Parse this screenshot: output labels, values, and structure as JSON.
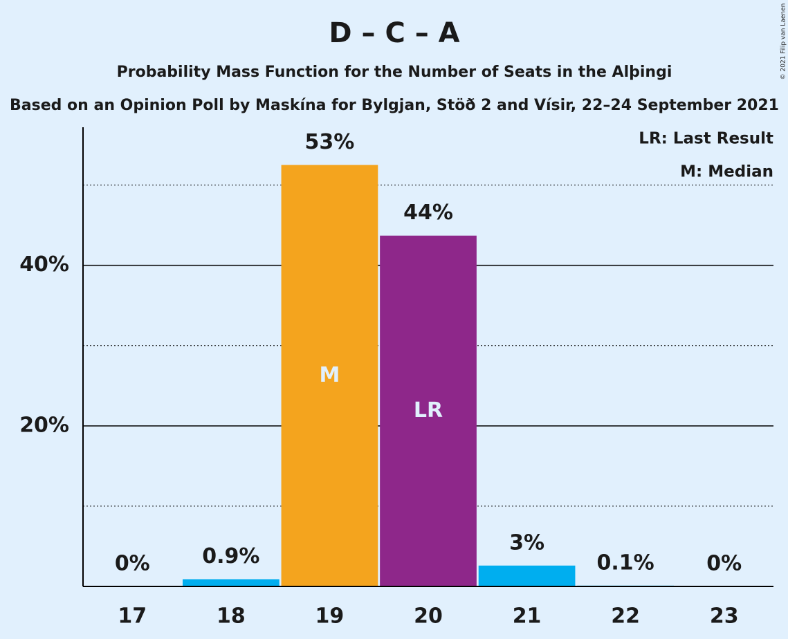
{
  "chart_data": {
    "type": "bar",
    "title": "D – C – A",
    "subtitle": "Probability Mass Function for the Number of Seats in the Alþingi",
    "source": "Based on an Opinion Poll by Maskína for Bylgjan, Stöð 2 and Vísir, 22–24 September 2021",
    "copyright": "© 2021 Filip van Laenen",
    "notes": [
      "LR: Last Result",
      "M: Median"
    ],
    "categories": [
      "17",
      "18",
      "19",
      "20",
      "21",
      "22",
      "23"
    ],
    "values": [
      0,
      0.9,
      52.5,
      43.7,
      2.6,
      0.1,
      0
    ],
    "value_labels": [
      "0%",
      "0.9%",
      "53%",
      "44%",
      "3%",
      "0.1%",
      "0%"
    ],
    "colors": [
      "#00aeef",
      "#00aeef",
      "#f4a41e",
      "#8e278a",
      "#00aeef",
      "#00aeef",
      "#00aeef"
    ],
    "bar_labels": [
      null,
      null,
      "M",
      "LR",
      null,
      null,
      null
    ],
    "ylim": [
      0,
      57.2
    ],
    "yticks": [
      {
        "value": 20,
        "label": "20%"
      },
      {
        "value": 40,
        "label": "40%"
      }
    ],
    "minor_yticks": [
      10,
      30,
      50
    ],
    "grid": true
  }
}
